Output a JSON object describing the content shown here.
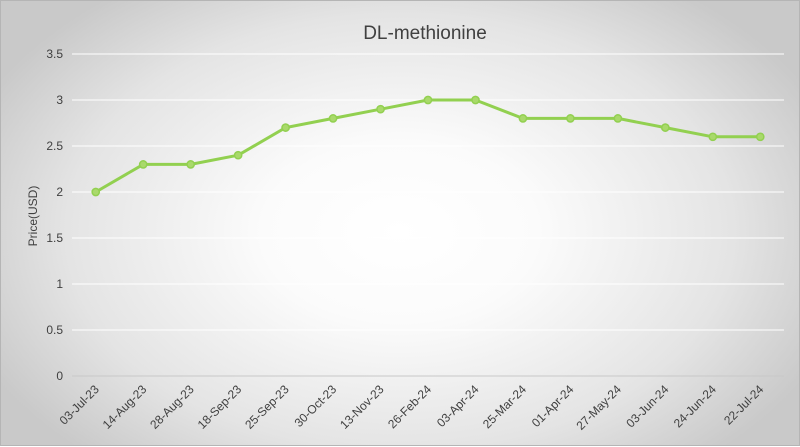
{
  "chart_data": {
    "type": "line",
    "title": "DL-methionine",
    "xlabel": "",
    "ylabel": "Price(USD)",
    "ylim": [
      0,
      3.5
    ],
    "yticks": [
      "0",
      "0.5",
      "1",
      "1.5",
      "2",
      "2.5",
      "3",
      "3.5"
    ],
    "ytick_values": [
      0,
      0.5,
      1,
      1.5,
      2,
      2.5,
      3,
      3.5
    ],
    "grid": true,
    "legend": "none",
    "categories": [
      "03-Jul-23",
      "14-Aug-23",
      "28-Aug-23",
      "18-Sep-23",
      "25-Sep-23",
      "30-Oct-23",
      "13-Nov-23",
      "26-Feb-24",
      "03-Apr-24",
      "25-Mar-24",
      "01-Apr-24",
      "27-May-24",
      "03-Jun-24",
      "24-Jun-24",
      "22-Jul-24"
    ],
    "series": [
      {
        "values": [
          2.0,
          2.3,
          2.3,
          2.4,
          2.7,
          2.8,
          2.9,
          3.0,
          3.0,
          2.8,
          2.8,
          2.8,
          2.7,
          2.6,
          2.6
        ],
        "color": "#92d050",
        "marker_fill": "#a9d96b"
      }
    ]
  }
}
